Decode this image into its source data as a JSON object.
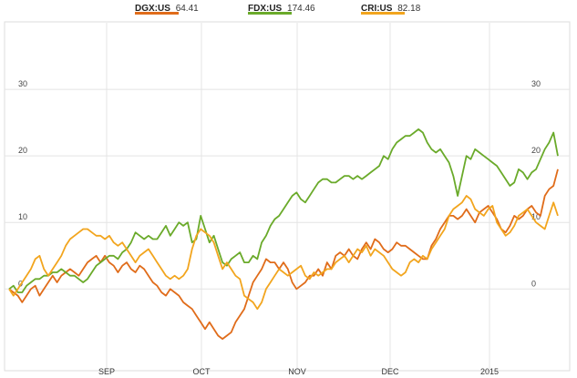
{
  "legend": [
    {
      "symbol": "DGX:US",
      "price": "64.41",
      "color": "#e06c1a"
    },
    {
      "symbol": "FDX:US",
      "price": "174.46",
      "color": "#6aaa2a"
    },
    {
      "symbol": "CRI:US",
      "price": "82.18",
      "color": "#f2a51e"
    }
  ],
  "chart_data": {
    "type": "line",
    "title": "",
    "xlabel": "",
    "ylabel": "",
    "x_tick_labels": [
      "SEP",
      "OCT",
      "NOV",
      "DEC",
      "2015"
    ],
    "y_ticks": [
      "0",
      "10",
      "20",
      "30"
    ],
    "ylim": [
      -12,
      40
    ],
    "grid": true,
    "legend_position": "top",
    "x_points": 127,
    "series": [
      {
        "name": "DGX:US",
        "color": "#e06c1a",
        "values": [
          0,
          -0.5,
          -1,
          -2,
          -1,
          0,
          0.5,
          -1,
          0,
          1,
          2,
          1,
          2,
          2.5,
          3,
          2.5,
          2,
          3,
          4,
          4.5,
          5,
          4,
          5,
          4,
          3.5,
          2.5,
          3.5,
          4,
          3,
          2.5,
          3.5,
          3,
          2,
          1,
          0.5,
          -0.5,
          -1,
          0,
          -0.5,
          -1,
          -2,
          -2.5,
          -3,
          -4,
          -5,
          -6,
          -5,
          -6,
          -7,
          -7.5,
          -7,
          -6.5,
          -5,
          -4,
          -3,
          -1,
          1,
          2,
          3,
          4.5,
          4,
          4,
          3,
          4,
          3,
          1,
          0,
          0.5,
          1,
          2,
          2,
          3,
          2,
          4,
          3,
          5,
          5.5,
          5,
          6,
          5,
          4.5,
          6,
          7,
          6,
          7.5,
          7,
          6,
          5.5,
          6,
          7,
          6.5,
          6.5,
          6,
          5.5,
          5,
          4.5,
          4.5,
          6.5,
          7.5,
          9,
          10,
          11,
          11,
          10.5,
          11,
          12,
          11,
          10,
          11.5,
          12,
          12.5,
          11.5,
          10.5,
          9,
          8.5,
          9.5,
          11,
          10.5,
          11,
          12,
          12.5,
          11.5,
          11,
          14,
          15,
          15.5,
          18
        ]
      },
      {
        "name": "FDX:US",
        "color": "#6aaa2a",
        "values": [
          0,
          0.5,
          -0.5,
          -0.5,
          0.5,
          1,
          1.5,
          1.5,
          2,
          2,
          2.5,
          2.5,
          3,
          2.5,
          2,
          2,
          1.5,
          1,
          1.5,
          2.5,
          3.5,
          4,
          4.5,
          5,
          5,
          4.5,
          5.5,
          6,
          7,
          8.5,
          8,
          7.5,
          8,
          7.5,
          7.5,
          8.5,
          9.5,
          8,
          9,
          10,
          9.5,
          10,
          7,
          7.5,
          11,
          9,
          7,
          8,
          6,
          4,
          3.5,
          4.5,
          5,
          5.5,
          4,
          4,
          5,
          4.5,
          7,
          8,
          9.5,
          10.5,
          11,
          12,
          13,
          14,
          14.5,
          13.5,
          13,
          14,
          15,
          16,
          16.5,
          16.5,
          16,
          16,
          16.5,
          17,
          17,
          16.5,
          17,
          16.5,
          17,
          17.5,
          18,
          18.5,
          20,
          19.5,
          21,
          22,
          22.5,
          23,
          23,
          23.5,
          24,
          23.5,
          22,
          21,
          20.5,
          21,
          20,
          19,
          17,
          14,
          17,
          20,
          19.5,
          21,
          20.5,
          20,
          19.5,
          19,
          18.5,
          17.5,
          16.5,
          15.5,
          16,
          18,
          17.5,
          16.5,
          17.5,
          18,
          19.5,
          21,
          22,
          23.5,
          20
        ]
      },
      {
        "name": "CRI:US",
        "color": "#f2a51e",
        "values": [
          0,
          -1,
          0,
          1,
          2,
          3,
          4.5,
          5,
          3,
          2,
          3,
          4,
          5,
          6.5,
          7.5,
          8,
          8.5,
          9,
          9,
          8.5,
          8,
          8,
          7.5,
          8,
          7,
          6.5,
          7,
          6,
          5,
          4,
          5,
          5.5,
          6,
          5,
          4,
          3,
          2,
          1.5,
          2,
          1.5,
          2,
          3,
          6,
          8,
          9,
          8.5,
          8,
          7,
          5,
          3,
          4,
          3,
          2,
          1.5,
          -1,
          -1.5,
          -2,
          -3,
          -2,
          0,
          1,
          2,
          3,
          2.5,
          2,
          2.5,
          3,
          3.5,
          2,
          1.5,
          2.5,
          2,
          2.5,
          3,
          3,
          4,
          4.5,
          5,
          4,
          5,
          6,
          5.5,
          6.5,
          5,
          6,
          5.5,
          5,
          4,
          3,
          2.5,
          2,
          2.5,
          4,
          4.5,
          4,
          5,
          4.5,
          6,
          7,
          8,
          9,
          11,
          12,
          12.5,
          13,
          14,
          13.5,
          12,
          11.5,
          11,
          12,
          12.5,
          10,
          9,
          8,
          8.5,
          9.5,
          11,
          11.5,
          12,
          11,
          10,
          9.5,
          9,
          11,
          13,
          11
        ]
      }
    ]
  }
}
